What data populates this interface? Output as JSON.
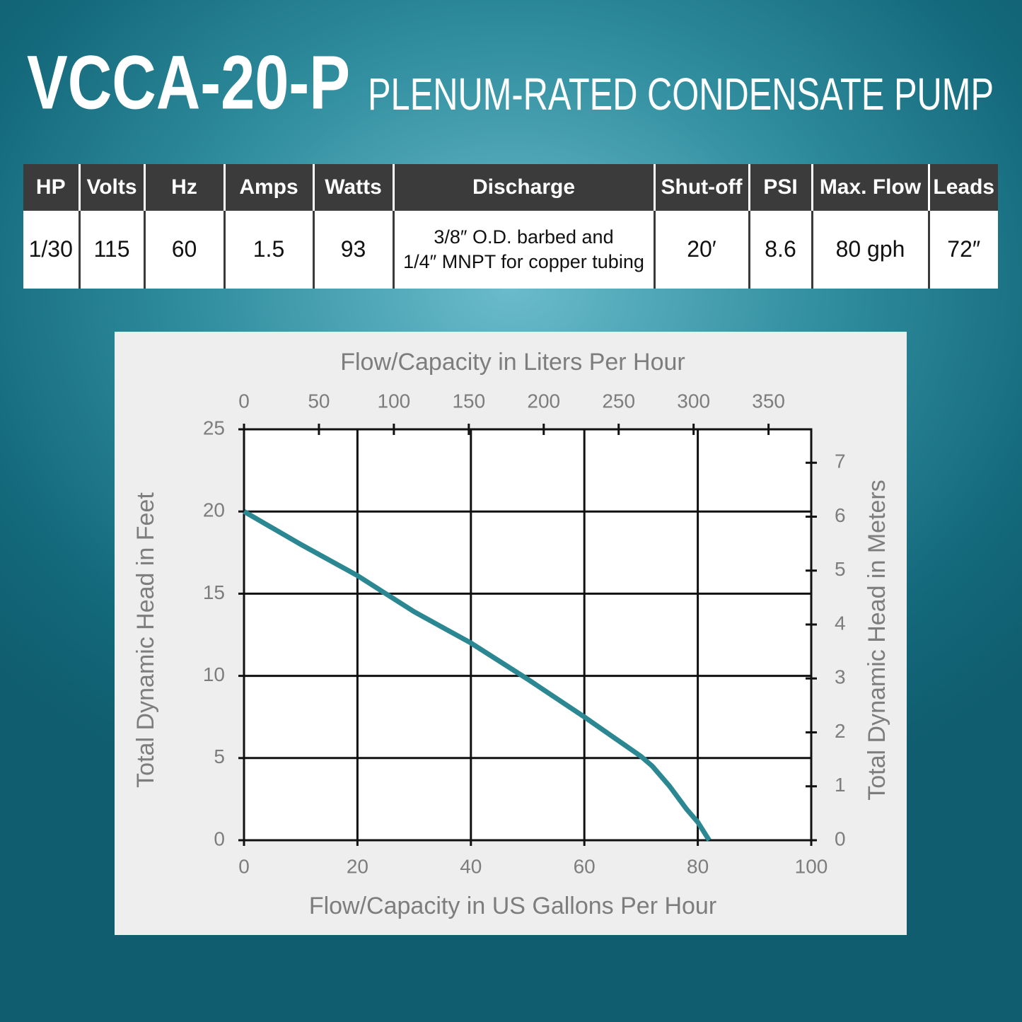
{
  "header": {
    "title": "VCCA-20-P",
    "subtitle": "PLENUM-RATED CONDENSATE PUMP"
  },
  "table": {
    "columns": [
      "HP",
      "Volts",
      "Hz",
      "Amps",
      "Watts",
      "Discharge",
      "Shut-off",
      "PSI",
      "Max. Flow",
      "Leads"
    ],
    "rows": [
      [
        "1/30",
        "115",
        "60",
        "1.5",
        "93",
        [
          "3/8″ O.D. barbed and",
          "1/4″ MNPT for copper tubing"
        ],
        "20′",
        "8.6",
        "80 gph",
        "72″"
      ]
    ]
  },
  "chart_data": {
    "type": "line",
    "x_label": "Flow/Capacity in US Gallons Per Hour",
    "x2_label": "Flow/Capacity in Liters Per Hour",
    "y_label": "Total Dynamic Head in Feet",
    "y2_label": "Total Dynamic Head in Meters",
    "x": [
      0,
      10,
      20,
      25,
      30,
      40,
      50,
      60,
      65,
      70,
      72,
      75,
      78,
      80,
      82
    ],
    "series": [
      {
        "color": "#2b8791",
        "values": [
          20,
          18,
          16.1,
          15,
          13.9,
          12,
          9.8,
          7.5,
          6.3,
          5.1,
          4.5,
          3.3,
          1.9,
          1.1,
          0
        ]
      }
    ],
    "xlim": [
      0,
      100
    ],
    "xticks": [
      0,
      20,
      40,
      60,
      80,
      100
    ],
    "x2lim": [
      0,
      378.5
    ],
    "x2ticks": [
      0,
      50,
      100,
      150,
      200,
      250,
      300,
      350
    ],
    "ylim": [
      0,
      25
    ],
    "yticks": [
      0,
      5,
      10,
      15,
      20,
      25
    ],
    "y2lim": [
      0,
      7.62
    ],
    "y2ticks": [
      0,
      1,
      2,
      3,
      4,
      5,
      6,
      7
    ],
    "grid": true
  }
}
